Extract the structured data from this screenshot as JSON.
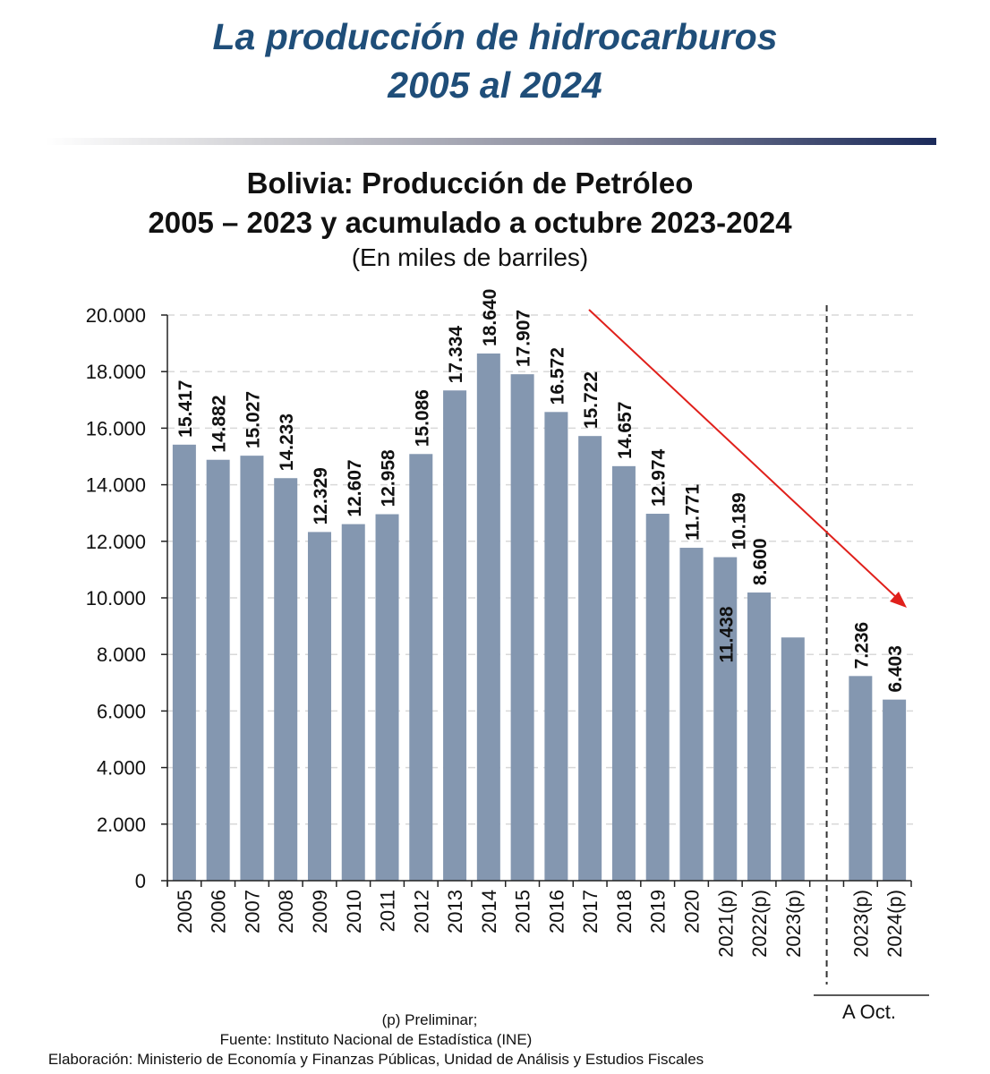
{
  "header": {
    "title_line1": "La producción de hidrocarburos",
    "title_line2": "2005 al 2024",
    "accent_color": "#1f4e79"
  },
  "chart_data": {
    "type": "bar",
    "title": "Bolivia: Producción de Petróleo",
    "title_line2": "2005 – 2023 y acumulado a octubre 2023-2024",
    "subtitle": "(En miles de barriles)",
    "xlabel": "",
    "ylabel": "",
    "ylim": [
      0,
      20000
    ],
    "grid": true,
    "bar_color": "#8497b0",
    "yticks": [
      {
        "value": 0,
        "label": "0"
      },
      {
        "value": 2000,
        "label": "2.000"
      },
      {
        "value": 4000,
        "label": "4.000"
      },
      {
        "value": 6000,
        "label": "6.000"
      },
      {
        "value": 8000,
        "label": "8.000"
      },
      {
        "value": 10000,
        "label": "10.000"
      },
      {
        "value": 12000,
        "label": "12.000"
      },
      {
        "value": 14000,
        "label": "14.000"
      },
      {
        "value": 16000,
        "label": "16.000"
      },
      {
        "value": 18000,
        "label": "18.000"
      },
      {
        "value": 20000,
        "label": "20.000"
      }
    ],
    "categories": [
      "2005",
      "2006",
      "2007",
      "2008",
      "2009",
      "2010",
      "2011",
      "2012",
      "2013",
      "2014",
      "2015",
      "2016",
      "2017",
      "2018",
      "2019",
      "2020",
      "2021(p)",
      "2022(p)",
      "2023(p)",
      "",
      "2023(p)",
      "2024(p)"
    ],
    "values": [
      15417,
      14882,
      15027,
      14233,
      12329,
      12607,
      12958,
      15086,
      17334,
      18640,
      17907,
      16572,
      15722,
      14657,
      12974,
      11771,
      11438,
      10189,
      8600,
      null,
      7236,
      6403
    ],
    "data_labels": [
      "15.417",
      "14.882",
      "15.027",
      "14.233",
      "12.329",
      "12.607",
      "12.958",
      "15.086",
      "17.334",
      "18.640",
      "17.907",
      "16.572",
      "15.722",
      "14.657",
      "12.974",
      "11.771",
      "11.438",
      "10.189",
      "8.600",
      "",
      "7.236",
      "6.403"
    ],
    "group_label": "A Oct.",
    "annotation": {
      "type": "trend-arrow",
      "color": "#e0201b",
      "direction": "down"
    }
  },
  "footer": {
    "line1": "(p) Preliminar;",
    "line2": "Fuente: Instituto Nacional de Estadística (INE)",
    "line3": "Elaboración: Ministerio de Economía y Finanzas Públicas, Unidad de Análisis y Estudios Fiscales"
  }
}
